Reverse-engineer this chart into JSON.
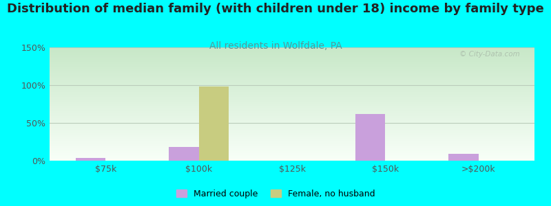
{
  "title": "Distribution of median family (with children under 18) income by family type",
  "subtitle": "All residents in Wolfdale, PA",
  "watermark": "© City-Data.com",
  "background_color": "#00FFFF",
  "plot_grad_topleft": "#c8e8c8",
  "plot_grad_bottomright": "#f8fff8",
  "categories": [
    "$75k",
    "$100k",
    "$125k",
    "$150k",
    ">$200k"
  ],
  "married_couple": [
    4,
    18,
    0,
    62,
    9
  ],
  "female_no_husband": [
    0,
    98,
    0,
    0,
    0
  ],
  "married_couple_color": "#c9a0dc",
  "female_no_husband_color": "#c8cc80",
  "ylim": [
    0,
    150
  ],
  "yticks": [
    0,
    50,
    100,
    150
  ],
  "ytick_labels": [
    "0%",
    "50%",
    "100%",
    "150%"
  ],
  "title_fontsize": 13,
  "subtitle_fontsize": 10,
  "title_color": "#222222",
  "subtitle_color": "#559999",
  "bar_width": 0.32,
  "legend_labels": [
    "Married couple",
    "Female, no husband"
  ],
  "gridline_color": "#bbccbb",
  "watermark_color": "#aabbaa"
}
